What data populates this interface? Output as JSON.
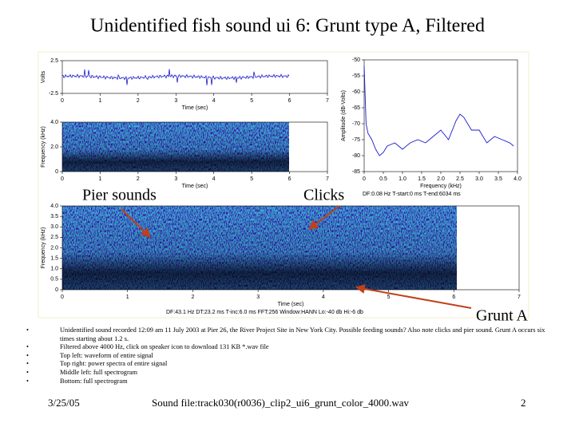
{
  "title": "Unidentified fish sound ui 6: Grunt type A, Filtered",
  "chart_data": [
    {
      "type": "waveform",
      "ylabel": "Volts",
      "xlabel": "Time (sec)",
      "xlim": [
        0,
        7
      ],
      "xticks": [
        0,
        1,
        2,
        3,
        4,
        5,
        6,
        7
      ],
      "ylim": [
        -2.5,
        2.5
      ],
      "yticks": [
        2.5,
        -2.5
      ],
      "color": "#1a1acc"
    },
    {
      "type": "spectrogram",
      "ylabel": "Frequency (kHz)",
      "xlabel": "Time (sec)",
      "xlim": [
        0,
        7
      ],
      "xticks": [
        0,
        1,
        2,
        3,
        4,
        5,
        6,
        7
      ],
      "ylim": [
        0,
        4
      ],
      "yticks": [
        {
          "value": 4,
          "label": "4.0"
        },
        {
          "value": 2,
          "label": "2.0"
        },
        0
      ]
    },
    {
      "type": "line",
      "ylabel": "Amplitude (dB-Volts)",
      "xlabel": "Frequency (kHz)",
      "note": "DF:0.08 Hz   T-start:0 ms   T-end:6034 ms",
      "xlim": [
        0,
        4
      ],
      "xticks": [
        0,
        0.5,
        {
          "value": 1,
          "label": "1.0"
        },
        1.5,
        {
          "value": 2,
          "label": "2.0"
        },
        2.5,
        {
          "value": 3,
          "label": "3.0"
        },
        3.5,
        {
          "value": 4,
          "label": "4.0"
        }
      ],
      "ylim": [
        -85,
        -50
      ],
      "yticks": [
        -50,
        -55,
        -60,
        -65,
        -70,
        -75,
        -80,
        -85
      ],
      "color": "#1a1acc",
      "x": [
        0,
        0.05,
        0.1,
        0.2,
        0.3,
        0.4,
        0.5,
        0.6,
        0.8,
        1.0,
        1.2,
        1.4,
        1.6,
        1.8,
        2.0,
        2.2,
        2.4,
        2.5,
        2.6,
        2.8,
        3.0,
        3.2,
        3.4,
        3.6,
        3.8,
        3.9
      ],
      "values": [
        -52,
        -70,
        -73,
        -75,
        -78,
        -80,
        -79,
        -77,
        -76,
        -78,
        -76,
        -75,
        -76,
        -74,
        -72,
        -75,
        -69,
        -67,
        -68,
        -72,
        -72,
        -76,
        -74,
        -75,
        -76,
        -77
      ]
    },
    {
      "type": "spectrogram",
      "ylabel": "Frequency (kHz)",
      "xlabel": "Time (sec)",
      "note": "DF:43.1 Hz   DT:23.2 ms   T-inc:6.0 ms   FFT:256   Window:HANN   Lo:-40 db   Hi:-6 db",
      "xlim": [
        0,
        7
      ],
      "xticks": [
        0,
        1,
        2,
        3,
        4,
        5,
        6,
        7
      ],
      "ylim": [
        0,
        4
      ],
      "yticks": [
        {
          "value": 4,
          "label": "4.0"
        },
        3.5,
        {
          "value": 3,
          "label": "3.0"
        },
        2.5,
        {
          "value": 2,
          "label": "2.0"
        },
        1.5,
        {
          "value": 1,
          "label": "1.0"
        },
        0.5,
        0
      ]
    }
  ],
  "annotations": [
    "Pier sounds",
    "Clicks",
    "Grunt A"
  ],
  "bullets": [
    "Unidentified sound recorded 12:09 am 11 July 2003 at Pier 26, the River Project Site in New York City. Possible feeding sounds? Also note clicks and pier sound. Grunt A occurs six times starting about 1.2 s.",
    "Filtered above 4000 Hz, click on speaker icon to download 131 KB *.wav file",
    "Top left: waveform of entire signal",
    "Top right: power spectra of entire signal",
    "Middle left: full spectrogram",
    "Bottom: full spectrogram"
  ],
  "footer": {
    "date": "3/25/05",
    "file": "Sound file:track030(r0036)_clip2_ui6_grunt_color_4000.wav",
    "page": "2"
  }
}
